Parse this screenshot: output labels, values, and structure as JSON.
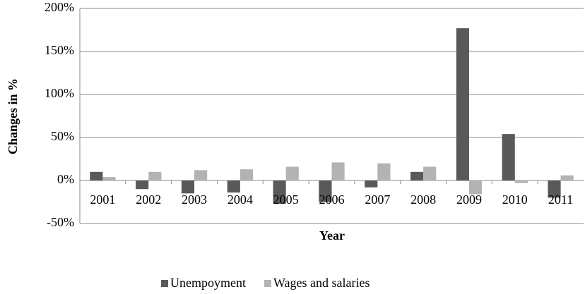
{
  "chart_data": {
    "type": "bar",
    "ylabel": "Changes in %",
    "xlabel": "Year",
    "categories": [
      "2001",
      "2002",
      "2003",
      "2004",
      "2005",
      "2006",
      "2007",
      "2008",
      "2009",
      "2010",
      "2011"
    ],
    "series": [
      {
        "name": "Unempoyment",
        "color": "#595959",
        "values": [
          10,
          -10,
          -15,
          -14,
          -27,
          -25,
          -8,
          10,
          177,
          54,
          -20
        ]
      },
      {
        "name": "Wages and salaries",
        "color": "#b3b3b3",
        "values": [
          4,
          10,
          12,
          13,
          16,
          21,
          20,
          16,
          -16,
          -3,
          6
        ]
      }
    ],
    "ylim": [
      -50,
      200
    ],
    "yticks": [
      {
        "value": -50,
        "label": "-50%"
      },
      {
        "value": 0,
        "label": "0%"
      },
      {
        "value": 50,
        "label": "50%"
      },
      {
        "value": 100,
        "label": "100%"
      },
      {
        "value": 150,
        "label": "150%"
      },
      {
        "value": 200,
        "label": "200%"
      }
    ],
    "grid": true,
    "legend": "bottom"
  }
}
